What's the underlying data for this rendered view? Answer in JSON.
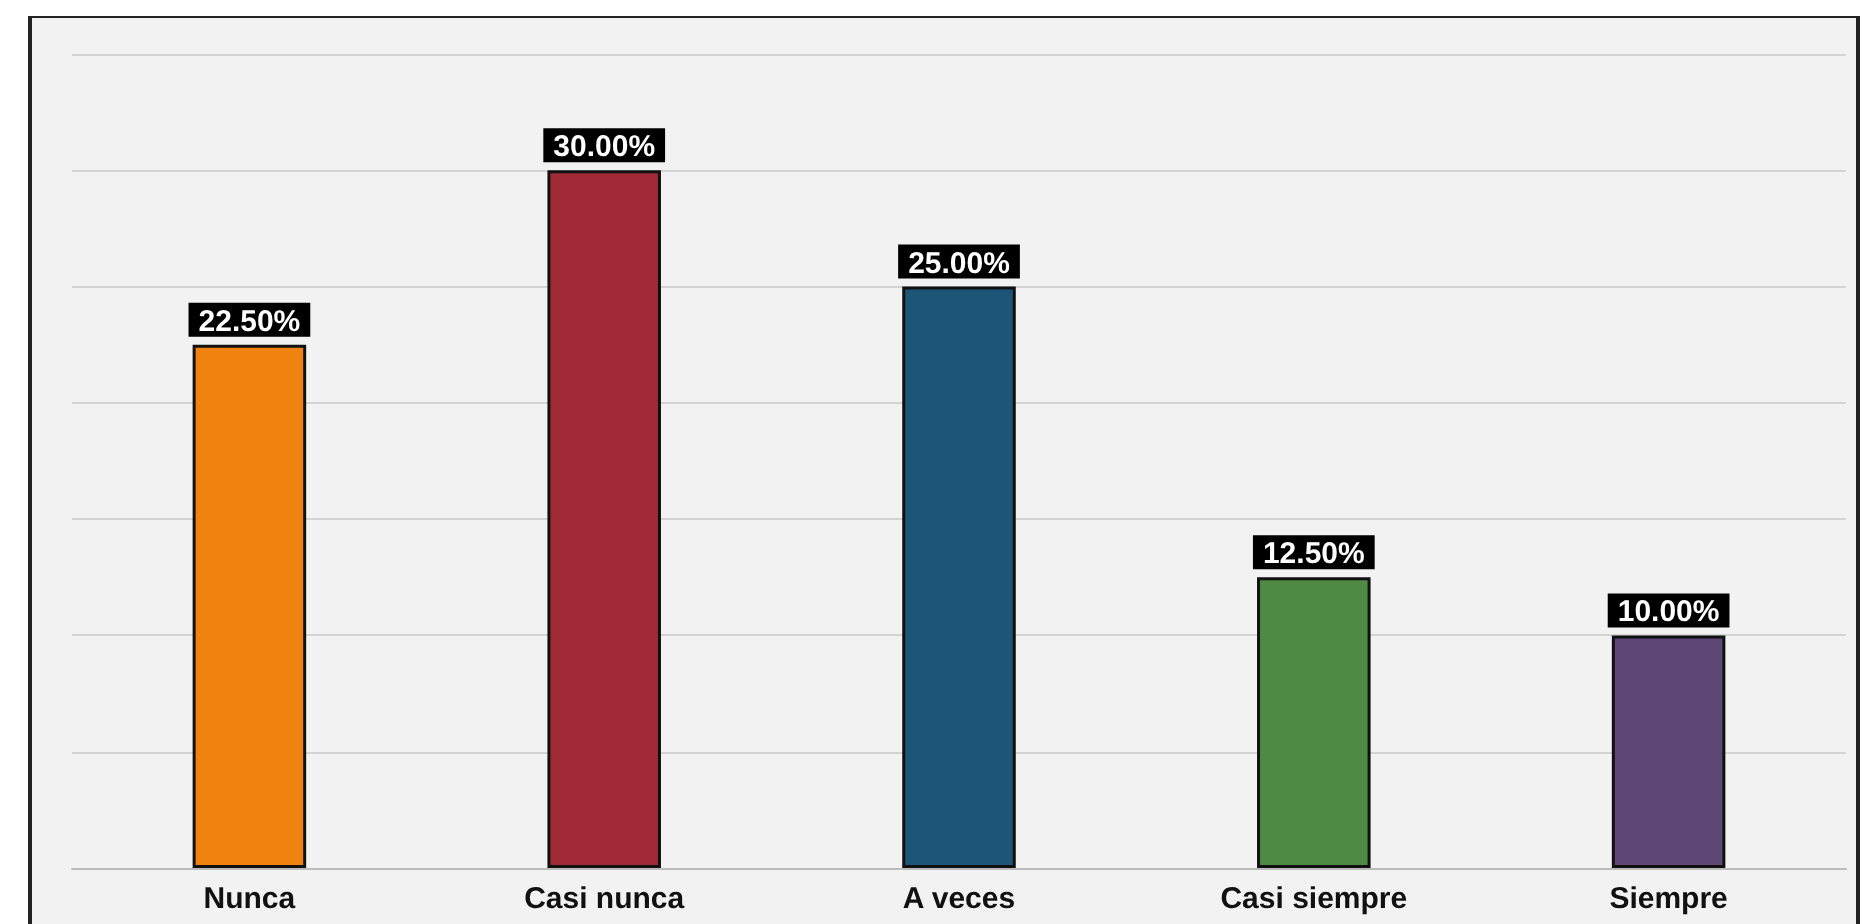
{
  "chart_data": {
    "type": "bar",
    "categories": [
      "Nunca",
      "Casi nunca",
      "A veces",
      "Casi siempre",
      "Siempre"
    ],
    "values": [
      22.5,
      30,
      25,
      12.5,
      10
    ],
    "colors": [
      "#f0820f",
      "#a12a37",
      "#1c5577",
      "#4e8a44",
      "#5e4776"
    ],
    "value_labels": [
      "22.50%",
      "30.00%",
      "25.00%",
      "12.50%",
      "10.00%"
    ],
    "ylim": [
      0,
      35
    ],
    "yticks": [
      {
        "value": 0,
        "label": null
      },
      {
        "value": 5,
        "label": null
      },
      {
        "value": 10,
        "label": null
      },
      {
        "value": 15,
        "label": null
      },
      {
        "value": 20,
        "label": null
      },
      {
        "value": 25,
        "label": null
      },
      {
        "value": 30,
        "label": null
      },
      {
        "value": 35,
        "label": null
      }
    ],
    "grid": "y",
    "tick_labels": "x"
  }
}
